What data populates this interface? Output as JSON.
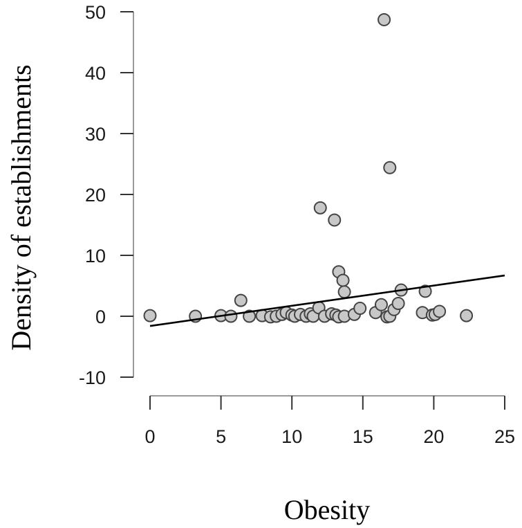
{
  "chart_data": {
    "type": "scatter",
    "title": "",
    "xlabel": "Obesity",
    "ylabel": "Density of establishments",
    "xlim": [
      0,
      25
    ],
    "ylim": [
      -10,
      50
    ],
    "x_ticks": [
      0,
      5,
      10,
      15,
      20,
      25
    ],
    "y_ticks": [
      -10,
      0,
      10,
      20,
      30,
      40,
      50
    ],
    "x_tick_labels": [
      "0",
      "5",
      "10",
      "15",
      "20",
      "25"
    ],
    "y_tick_labels": [
      "-10",
      "0",
      "10",
      "20",
      "30",
      "40",
      "50"
    ],
    "grid": false,
    "legend": null,
    "marker_fill": "#c8c8c8",
    "marker_stroke": "#444444",
    "trend_line": {
      "x": [
        0,
        25
      ],
      "y": [
        -1.6,
        6.7
      ],
      "color": "#000000"
    },
    "points": [
      {
        "x": 0.0,
        "y": 0.1
      },
      {
        "x": 3.2,
        "y": 0.0
      },
      {
        "x": 5.0,
        "y": 0.1
      },
      {
        "x": 5.7,
        "y": 0.0
      },
      {
        "x": 6.4,
        "y": 2.6
      },
      {
        "x": 7.0,
        "y": 0.0
      },
      {
        "x": 7.9,
        "y": 0.1
      },
      {
        "x": 8.5,
        "y": -0.1
      },
      {
        "x": 8.9,
        "y": 0.0
      },
      {
        "x": 9.3,
        "y": 0.3
      },
      {
        "x": 9.6,
        "y": 0.6
      },
      {
        "x": 10.0,
        "y": 0.2
      },
      {
        "x": 10.2,
        "y": 0.0
      },
      {
        "x": 10.6,
        "y": 0.3
      },
      {
        "x": 11.0,
        "y": 0.0
      },
      {
        "x": 11.3,
        "y": 0.4
      },
      {
        "x": 11.5,
        "y": 0.0
      },
      {
        "x": 11.9,
        "y": 1.4
      },
      {
        "x": 12.0,
        "y": 17.8
      },
      {
        "x": 12.3,
        "y": 0.0
      },
      {
        "x": 12.8,
        "y": 0.4
      },
      {
        "x": 13.0,
        "y": 15.8
      },
      {
        "x": 13.1,
        "y": 0.2
      },
      {
        "x": 13.3,
        "y": 7.3
      },
      {
        "x": 13.3,
        "y": -0.1
      },
      {
        "x": 13.6,
        "y": 5.9
      },
      {
        "x": 13.7,
        "y": 4.0
      },
      {
        "x": 13.7,
        "y": 0.0
      },
      {
        "x": 14.4,
        "y": 0.3
      },
      {
        "x": 14.8,
        "y": 1.3
      },
      {
        "x": 15.9,
        "y": 0.6
      },
      {
        "x": 16.3,
        "y": 1.9
      },
      {
        "x": 16.5,
        "y": 48.7
      },
      {
        "x": 16.7,
        "y": -0.1
      },
      {
        "x": 16.9,
        "y": 0.0
      },
      {
        "x": 16.9,
        "y": 24.4
      },
      {
        "x": 17.2,
        "y": 1.1
      },
      {
        "x": 17.5,
        "y": 2.1
      },
      {
        "x": 17.7,
        "y": 4.3
      },
      {
        "x": 19.2,
        "y": 0.6
      },
      {
        "x": 19.4,
        "y": 4.1
      },
      {
        "x": 19.9,
        "y": 0.2
      },
      {
        "x": 20.1,
        "y": 0.3
      },
      {
        "x": 20.4,
        "y": 0.8
      },
      {
        "x": 22.3,
        "y": 0.1
      }
    ]
  }
}
